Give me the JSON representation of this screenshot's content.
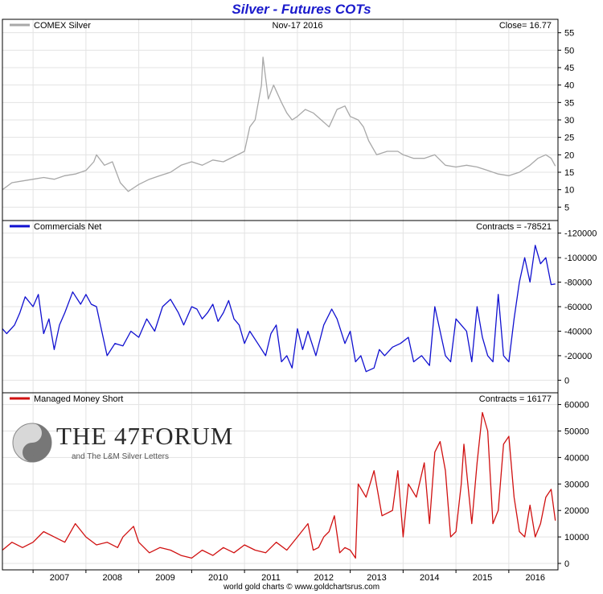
{
  "title": "Silver - Futures COTs",
  "footer": "world gold charts © www.goldchartsrus.com",
  "watermark": {
    "title": "THE 47FORUM",
    "subtitle": "and The L&M Silver Letters"
  },
  "colors": {
    "title": "#1a1acc",
    "silver": "#a8a8a8",
    "commercials": "#1010d0",
    "managed_money": "#d01010"
  },
  "chart_data": [
    {
      "type": "line",
      "series": [
        {
          "name": "COMEX Silver",
          "color": "#a8a8a8",
          "x": [
            2006.42,
            2006.6,
            2006.8,
            2007.0,
            2007.2,
            2007.4,
            2007.6,
            2007.8,
            2008.0,
            2008.15,
            2008.2,
            2008.35,
            2008.5,
            2008.65,
            2008.8,
            2008.9,
            2009.0,
            2009.2,
            2009.4,
            2009.6,
            2009.8,
            2010.0,
            2010.2,
            2010.4,
            2010.6,
            2010.8,
            2011.0,
            2011.1,
            2011.2,
            2011.32,
            2011.35,
            2011.45,
            2011.55,
            2011.7,
            2011.8,
            2011.9,
            2012.0,
            2012.15,
            2012.3,
            2012.45,
            2012.6,
            2012.75,
            2012.9,
            2013.0,
            2013.15,
            2013.25,
            2013.35,
            2013.5,
            2013.7,
            2013.9,
            2014.0,
            2014.2,
            2014.4,
            2014.6,
            2014.8,
            2015.0,
            2015.2,
            2015.4,
            2015.6,
            2015.8,
            2016.0,
            2016.2,
            2016.4,
            2016.55,
            2016.7,
            2016.8,
            2016.88
          ],
          "y": [
            10,
            12,
            12.5,
            13,
            13.5,
            13,
            14,
            14.5,
            15.5,
            18,
            20,
            17,
            18,
            12,
            9.5,
            10.5,
            11.5,
            13,
            14,
            15,
            17,
            18,
            17,
            18.5,
            18,
            19.5,
            21,
            28,
            30,
            40,
            48,
            36,
            40,
            35,
            32,
            30,
            31,
            33,
            32,
            30,
            28,
            33,
            34,
            31,
            30,
            28,
            24,
            20,
            21,
            21,
            20,
            19,
            19,
            20,
            17,
            16.5,
            17,
            16.5,
            15.5,
            14.5,
            14,
            15,
            17,
            19,
            20,
            19,
            16.77
          ]
        }
      ],
      "yticks": [
        5,
        10,
        15,
        20,
        25,
        30,
        35,
        40,
        45,
        50,
        55
      ],
      "ylim": [
        3,
        57
      ],
      "legend_value": "Close= 16.77",
      "date_label": "Nov-17  2016"
    },
    {
      "type": "line",
      "series": [
        {
          "name": "Commercials Net",
          "color": "#1010d0",
          "x": [
            2006.42,
            2006.5,
            2006.65,
            2006.75,
            2006.85,
            2007.0,
            2007.1,
            2007.2,
            2007.3,
            2007.4,
            2007.5,
            2007.6,
            2007.75,
            2007.9,
            2008.0,
            2008.1,
            2008.2,
            2008.3,
            2008.4,
            2008.55,
            2008.7,
            2008.85,
            2009.0,
            2009.15,
            2009.3,
            2009.45,
            2009.6,
            2009.75,
            2009.85,
            2010.0,
            2010.1,
            2010.2,
            2010.3,
            2010.4,
            2010.5,
            2010.6,
            2010.7,
            2010.8,
            2010.9,
            2011.0,
            2011.1,
            2011.25,
            2011.4,
            2011.5,
            2011.6,
            2011.7,
            2011.8,
            2011.9,
            2012.0,
            2012.1,
            2012.2,
            2012.35,
            2012.5,
            2012.65,
            2012.75,
            2012.9,
            2013.0,
            2013.1,
            2013.2,
            2013.3,
            2013.45,
            2013.55,
            2013.65,
            2013.8,
            2013.95,
            2014.1,
            2014.2,
            2014.35,
            2014.5,
            2014.6,
            2014.7,
            2014.8,
            2014.9,
            2015.0,
            2015.1,
            2015.2,
            2015.3,
            2015.4,
            2015.5,
            2015.6,
            2015.7,
            2015.8,
            2015.9,
            2016.0,
            2016.1,
            2016.2,
            2016.3,
            2016.4,
            2016.5,
            2016.6,
            2016.7,
            2016.8,
            2016.88
          ],
          "y": [
            -42000,
            -38000,
            -45000,
            -55000,
            -68000,
            -60000,
            -70000,
            -38000,
            -50000,
            -25000,
            -45000,
            -55000,
            -72000,
            -62000,
            -70000,
            -62000,
            -60000,
            -40000,
            -20000,
            -30000,
            -28000,
            -40000,
            -35000,
            -50000,
            -40000,
            -60000,
            -66000,
            -55000,
            -45000,
            -60000,
            -58000,
            -50000,
            -55000,
            -62000,
            -48000,
            -55000,
            -65000,
            -50000,
            -45000,
            -30000,
            -40000,
            -30000,
            -20000,
            -38000,
            -45000,
            -15000,
            -20000,
            -10000,
            -42000,
            -25000,
            -40000,
            -20000,
            -45000,
            -58000,
            -50000,
            -30000,
            -40000,
            -15000,
            -20000,
            -7000,
            -10000,
            -25000,
            -20000,
            -27000,
            -30000,
            -35000,
            -15000,
            -20000,
            -12000,
            -60000,
            -40000,
            -20000,
            -15000,
            -50000,
            -45000,
            -40000,
            -15000,
            -60000,
            -35000,
            -20000,
            -15000,
            -70000,
            -20000,
            -15000,
            -50000,
            -80000,
            -100000,
            -80000,
            -110000,
            -95000,
            -100000,
            -78000,
            -78521
          ]
        }
      ],
      "yticks": [
        0,
        -20000,
        -40000,
        -60000,
        -80000,
        -100000,
        -120000
      ],
      "ylim": [
        5000,
        -125000
      ],
      "legend_value": "Contracts = -78521"
    },
    {
      "type": "line",
      "series": [
        {
          "name": "Managed Money Short",
          "color": "#d01010",
          "x": [
            2006.42,
            2006.6,
            2006.8,
            2007.0,
            2007.2,
            2007.4,
            2007.6,
            2007.8,
            2008.0,
            2008.2,
            2008.4,
            2008.6,
            2008.7,
            2008.9,
            2009.0,
            2009.2,
            2009.4,
            2009.6,
            2009.8,
            2010.0,
            2010.2,
            2010.4,
            2010.6,
            2010.8,
            2011.0,
            2011.2,
            2011.4,
            2011.6,
            2011.8,
            2012.0,
            2012.2,
            2012.3,
            2012.4,
            2012.5,
            2012.6,
            2012.7,
            2012.8,
            2012.9,
            2013.0,
            2013.1,
            2013.15,
            2013.3,
            2013.45,
            2013.6,
            2013.8,
            2013.9,
            2014.0,
            2014.1,
            2014.25,
            2014.4,
            2014.5,
            2014.6,
            2014.7,
            2014.8,
            2014.9,
            2015.0,
            2015.1,
            2015.15,
            2015.3,
            2015.4,
            2015.5,
            2015.6,
            2015.7,
            2015.8,
            2015.9,
            2016.0,
            2016.1,
            2016.2,
            2016.3,
            2016.4,
            2016.5,
            2016.6,
            2016.7,
            2016.8,
            2016.88
          ],
          "y": [
            5000,
            8000,
            6000,
            8000,
            12000,
            10000,
            8000,
            15000,
            10000,
            7000,
            8000,
            6000,
            10000,
            14000,
            8000,
            4000,
            6000,
            5000,
            3000,
            2000,
            5000,
            3000,
            6000,
            4000,
            7000,
            5000,
            4000,
            8000,
            5000,
            10000,
            15000,
            5000,
            6000,
            10000,
            12000,
            18000,
            4000,
            6000,
            5000,
            2000,
            30000,
            25000,
            35000,
            18000,
            20000,
            35000,
            10000,
            30000,
            25000,
            38000,
            15000,
            42000,
            46000,
            35000,
            10000,
            12000,
            30000,
            45000,
            15000,
            38000,
            57000,
            50000,
            15000,
            20000,
            45000,
            48000,
            25000,
            12000,
            10000,
            22000,
            10000,
            15000,
            25000,
            28000,
            16177
          ]
        }
      ],
      "yticks": [
        0,
        10000,
        20000,
        30000,
        40000,
        50000,
        60000
      ],
      "ylim": [
        0,
        62000
      ],
      "legend_value": "Contracts = 16177"
    }
  ],
  "x_axis": {
    "ticks": [
      2007,
      2008,
      2009,
      2010,
      2011,
      2012,
      2013,
      2014,
      2015,
      2016
    ],
    "xlim": [
      2006.42,
      2016.93
    ]
  }
}
